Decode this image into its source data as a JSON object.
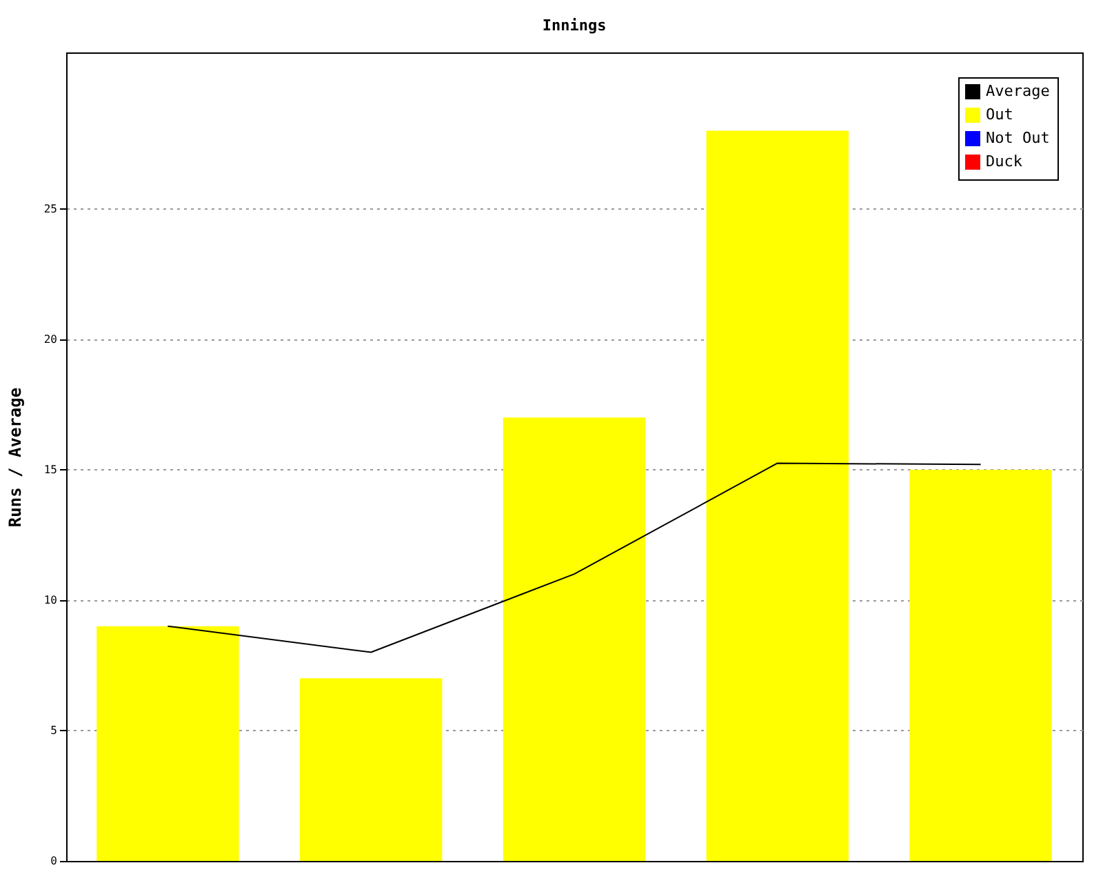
{
  "chart_data": {
    "type": "bar",
    "title": "Innings",
    "ylabel": "Runs / Average",
    "categories": [
      null,
      null,
      null,
      null,
      null
    ],
    "series": [
      {
        "name": "Average",
        "type": "line",
        "color": "#000000",
        "values": [
          9,
          8,
          11,
          15.25,
          15.2
        ]
      },
      {
        "name": "Out",
        "color": "#ffff00",
        "values": [
          9,
          7,
          17,
          28,
          15
        ]
      },
      {
        "name": "Not Out",
        "color": "#0000ff",
        "values": [
          null,
          null,
          null,
          null,
          null
        ]
      },
      {
        "name": "Duck",
        "color": "#ff0000",
        "values": [
          null,
          null,
          null,
          null,
          null
        ]
      }
    ],
    "ylim": [
      0,
      31
    ],
    "yticks": [
      0,
      5,
      10,
      15,
      20,
      25
    ],
    "grid": "y",
    "legend": "top right",
    "tick_labels": "y"
  }
}
